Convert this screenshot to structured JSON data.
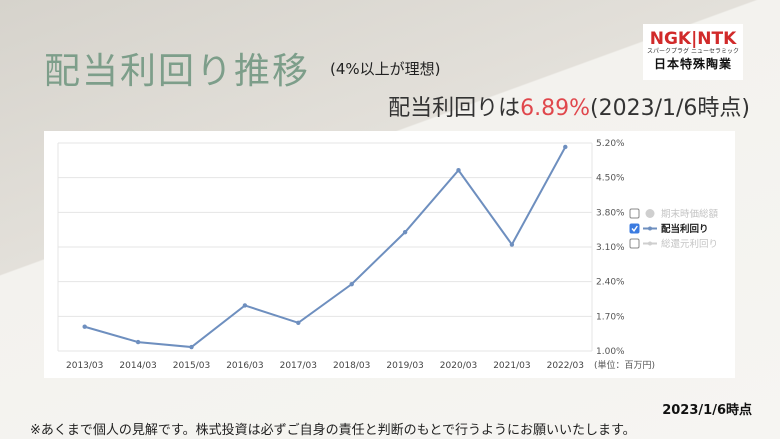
{
  "title": "配当利回り推移",
  "subtitle": "(4%以上が理想)",
  "headline": {
    "prefix": "配当利回りは",
    "value": "6.89%",
    "suffix": "(2023/1/6時点)"
  },
  "logo": {
    "top": "NGK|NTK",
    "sub": "スパークプラグ  ニューセラミック",
    "name": "日本特殊陶業"
  },
  "date_note": "2023/1/6時点",
  "disclaimer": "※あくまで個人の見解です。株式投資は必ずご自身の責任と判断のもとで行うようにお願いいたします。",
  "chart_data": {
    "type": "line",
    "categories": [
      "2013/03",
      "2014/03",
      "2015/03",
      "2016/03",
      "2017/03",
      "2018/03",
      "2019/03",
      "2020/03",
      "2021/03",
      "2022/03"
    ],
    "series": [
      {
        "name": "配当利回り",
        "values": [
          1.49,
          1.18,
          1.08,
          1.92,
          1.57,
          2.35,
          3.4,
          4.65,
          3.15,
          5.12
        ]
      }
    ],
    "y_ticks": [
      "1.00%",
      "1.70%",
      "2.40%",
      "3.10%",
      "3.80%",
      "4.50%",
      "5.20%"
    ],
    "ylim": [
      1.0,
      5.2
    ],
    "unit_label": "(単位：百万円)",
    "legend": [
      {
        "label": "期末時価総額",
        "checked": false,
        "active": false
      },
      {
        "label": "配当利回り",
        "checked": true,
        "active": true
      },
      {
        "label": "総還元利回り",
        "checked": false,
        "active": false
      }
    ],
    "legend_position": "right",
    "line_color": "#6e8fbf",
    "grid": true
  }
}
